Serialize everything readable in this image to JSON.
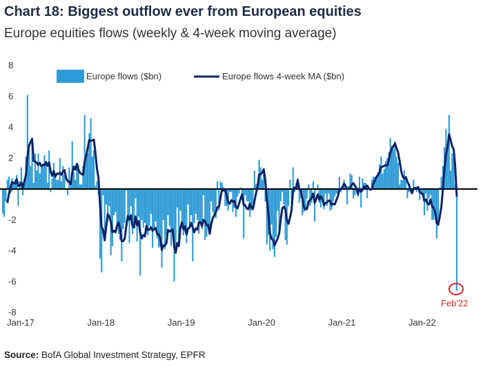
{
  "title_prefix": "Chart 18:",
  "title_main": "Biggest outflow ever from European equities",
  "subtitle": "Europe equities flows (weekly & 4-week moving average)",
  "source_label": "Source:",
  "source_text": "BofA Global Investment Strategy, EPFR",
  "chart_data": {
    "type": "bar",
    "x_start": "2017-01-04",
    "frequency": "weekly",
    "xticks": [
      "Jan-17",
      "Jan-18",
      "Jan-19",
      "Jan-20",
      "Jan-21",
      "Jan-22"
    ],
    "ylim": [
      -8,
      8
    ],
    "yticks": [
      8,
      6,
      4,
      2,
      0,
      -2,
      -4,
      -6,
      -8
    ],
    "legend_position": "top",
    "series": [
      {
        "name": "Europe flows ($bn)",
        "kind": "bar",
        "color": "#2e9bd6",
        "values": [
          -1.6,
          -1.8,
          -0.8,
          0.6,
          0.8,
          -0.3,
          0.7,
          0.4,
          0.6,
          0.9,
          -1.1,
          0.5,
          1.4,
          -0.4,
          0.5,
          2.1,
          6.1,
          2.5,
          1.5,
          2.9,
          0.4,
          2.3,
          1.2,
          2.3,
          1.0,
          1.4,
          1.6,
          2.2,
          1.8,
          0.4,
          2.5,
          -0.2,
          0.7,
          1.7,
          1.0,
          0.6,
          0.6,
          2.0,
          0.5,
          1.5,
          0.9,
          0.0,
          -0.4,
          1.4,
          0.2,
          3.1,
          1.1,
          0.6,
          1.7,
          1.6,
          0.3,
          0.3,
          1.5,
          4.8,
          2.0,
          2.3,
          3.6,
          4.6,
          2.1,
          2.5,
          0.2,
          0.5,
          -0.4,
          -4.5,
          -5.4,
          -0.4,
          -3.0,
          -1.0,
          -2.1,
          -1.1,
          -4.3,
          -3.7,
          -1.7,
          -1.5,
          -2.6,
          -2.9,
          -3.3,
          -4.7,
          -2.6,
          -2.2,
          -0.1,
          -2.1,
          -3.5,
          -1.1,
          -2.9,
          -2.5,
          -0.6,
          -3.4,
          -1.8,
          -5.6,
          -2.0,
          -2.5,
          -2.2,
          -2.9,
          -3.0,
          -2.4,
          -1.6,
          -3.8,
          -2.6,
          -2.1,
          -3.2,
          -3.8,
          -3.7,
          -5.1,
          -2.0,
          -3.9,
          -3.0,
          -1.7,
          -2.4,
          -3.7,
          -2.7,
          -6.0,
          -4.1,
          -1.2,
          -3.5,
          -1.4,
          -2.5,
          -3.0,
          -2.8,
          -3.5,
          -1.0,
          -2.6,
          -1.7,
          -4.7,
          -2.2,
          -1.6,
          -2.0,
          -2.9,
          -2.1,
          -2.6,
          -0.4,
          -3.3,
          -3.1,
          -2.5,
          -2.7,
          -0.8,
          -1.5,
          -1.8,
          -1.9,
          0.5,
          -1.4,
          0.5,
          0.4,
          0.1,
          -1.1,
          -1.1,
          -1.4,
          -0.2,
          -0.2,
          -1.5,
          -1.2,
          -1.8,
          -0.5,
          -0.3,
          0.1,
          -0.7,
          -3.2,
          -0.4,
          -0.8,
          -0.8,
          -1.8,
          -1.4,
          -1.2,
          1.2,
          0.3,
          0.3,
          1.9,
          1.4,
          0.6,
          1.2,
          -0.8,
          -3.6,
          -3.0,
          -4.0,
          -2.3,
          -3.9,
          -4.4,
          -3.1,
          -1.4,
          -2.6,
          -0.8,
          -0.2,
          -1.0,
          -3.3,
          -3.6,
          -1.1,
          0.6,
          -1.4,
          1.4,
          -0.2,
          0.4,
          0.7,
          -0.9,
          -0.6,
          -1.7,
          -1.5,
          -1.4,
          -0.6,
          0.3,
          -1.1,
          -0.9,
          0.5,
          -2.1,
          -0.1,
          0.3,
          -0.9,
          -1.2,
          -0.8,
          -1.3,
          -0.3,
          -1.1,
          -0.3,
          -1.4,
          -1.3,
          -0.8,
          -0.5,
          -0.3,
          -0.3,
          0.8,
          -0.2,
          0.2,
          0.6,
          0.2,
          -1.0,
          0.2,
          1.0,
          0.9,
          -0.6,
          -0.4,
          0.2,
          -0.5,
          0.8,
          -1.2,
          0.7,
          0.4,
          0.4,
          -0.6,
          0.0,
          0.0,
          0.6,
          0.8,
          0.8,
          0.9,
          1.1,
          1.6,
          2.1,
          1.0,
          1.3,
          1.8,
          2.0,
          2.4,
          3.3,
          2.8,
          2.6,
          3.1,
          2.1,
          1.7,
          0.3,
          0.6,
          0.6,
          1.2,
          0.7,
          -0.6,
          -0.2,
          -0.1,
          -0.2,
          0.6,
          0.0,
          -0.2,
          0.1,
          -0.7,
          -0.3,
          -0.4,
          -1.7,
          -0.3,
          -1.4,
          -0.6,
          -0.4,
          -2.0,
          -2.0,
          -1.6,
          -3.2,
          -2.4,
          0.1,
          0.8,
          1.5,
          2.7,
          3.9,
          2.8,
          4.8,
          1.2,
          2.3,
          2.0,
          0.3,
          -6.6
        ],
        "label": "Feb'22"
      },
      {
        "name": "Europe flows 4-week MA ($bn)",
        "kind": "line",
        "color": "#0b2266"
      }
    ]
  }
}
